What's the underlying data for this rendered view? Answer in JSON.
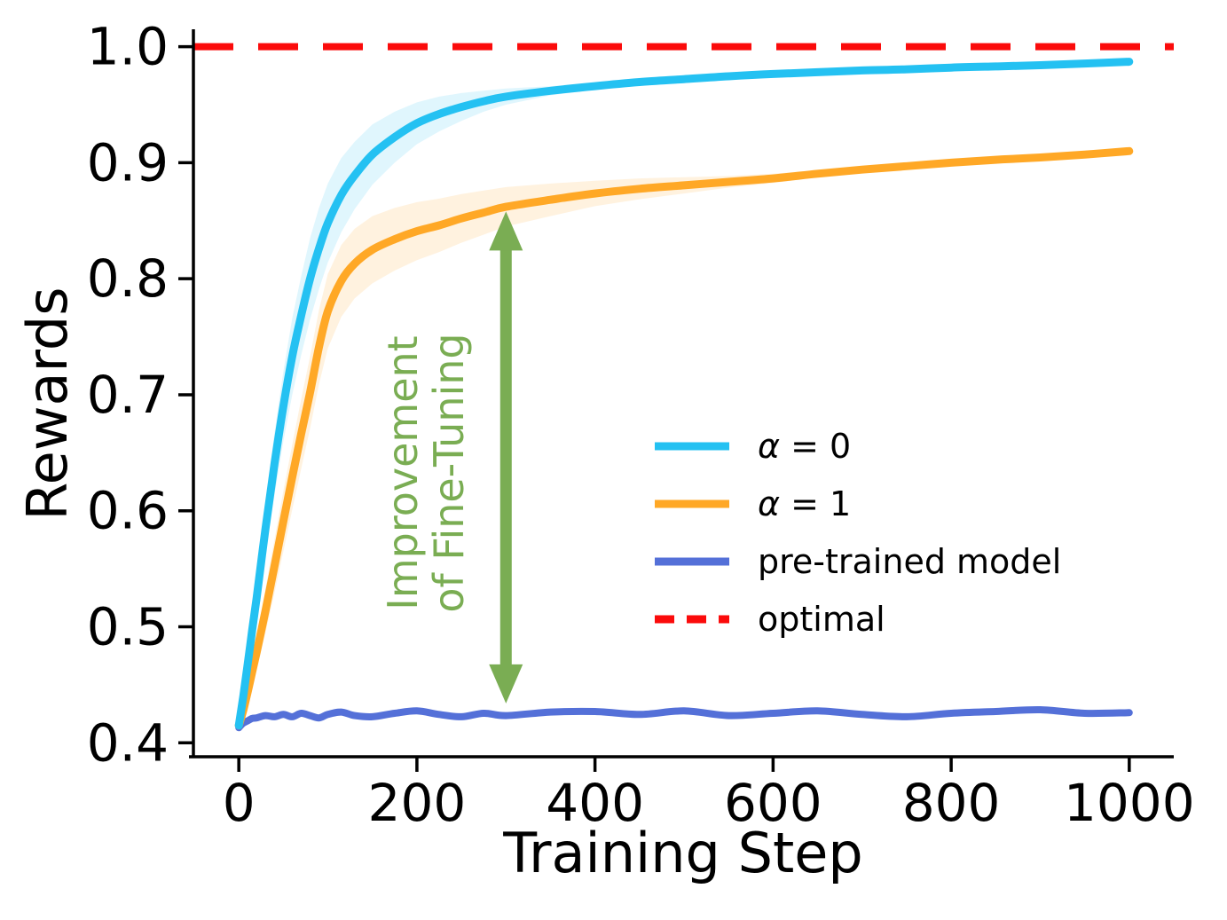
{
  "figure": {
    "background": "#ffffff",
    "xlabel": "Training Step",
    "ylabel": "Rewards",
    "axis_color": "#000000",
    "annotation": {
      "line1": "Improvement",
      "line2": "of Fine-Tuning",
      "color": "#7aad53",
      "arrow": {
        "x": 300,
        "y_from": 0.434,
        "y_to": 0.858
      }
    }
  },
  "chart_data": {
    "type": "line",
    "title": "",
    "xlabel": "Training Step",
    "ylabel": "Rewards",
    "xlim": [
      -51,
      1050
    ],
    "ylim": [
      0.388,
      1.015
    ],
    "xticks": [
      0,
      200,
      400,
      600,
      800,
      1000
    ],
    "yticks": [
      0.4,
      0.5,
      0.6,
      0.7,
      0.8,
      0.9,
      1.0
    ],
    "grid": false,
    "legend": {
      "position": "center right",
      "frame": false
    },
    "x": [
      0,
      5,
      10,
      15,
      20,
      30,
      40,
      50,
      60,
      70,
      80,
      90,
      100,
      115,
      130,
      150,
      175,
      200,
      225,
      250,
      275,
      300,
      350,
      400,
      450,
      500,
      550,
      600,
      650,
      700,
      750,
      800,
      850,
      900,
      950,
      1000
    ],
    "series": [
      {
        "name": "α = 0",
        "color": "#24c1f2",
        "band_color": "rgba(36,193,242,0.14)",
        "line_width": 9,
        "style": "solid",
        "values": [
          0.415,
          0.44,
          0.468,
          0.497,
          0.525,
          0.585,
          0.64,
          0.69,
          0.733,
          0.768,
          0.8,
          0.826,
          0.848,
          0.872,
          0.889,
          0.907,
          0.922,
          0.934,
          0.942,
          0.948,
          0.953,
          0.957,
          0.962,
          0.966,
          0.9695,
          0.972,
          0.9745,
          0.9765,
          0.978,
          0.9795,
          0.9805,
          0.982,
          0.983,
          0.984,
          0.9855,
          0.987
        ],
        "band_halfwidth": [
          0.003,
          0.006,
          0.009,
          0.013,
          0.016,
          0.022,
          0.027,
          0.03,
          0.033,
          0.034,
          0.035,
          0.035,
          0.034,
          0.032,
          0.029,
          0.026,
          0.022,
          0.018,
          0.015,
          0.012,
          0.009,
          0.007,
          0.004,
          0.003,
          0.002,
          0.002,
          0.0015,
          0.001,
          0.001,
          0.001,
          0.001,
          0.001,
          0.001,
          0.001,
          0.001,
          0.001
        ]
      },
      {
        "name": "α = 1",
        "color": "#ffa826",
        "band_color": "rgba(255,168,38,0.15)",
        "line_width": 9,
        "style": "solid",
        "values": [
          0.415,
          0.428,
          0.444,
          0.461,
          0.478,
          0.514,
          0.552,
          0.591,
          0.629,
          0.666,
          0.702,
          0.741,
          0.772,
          0.798,
          0.813,
          0.825,
          0.834,
          0.841,
          0.846,
          0.852,
          0.857,
          0.862,
          0.868,
          0.8735,
          0.8775,
          0.8805,
          0.8835,
          0.8865,
          0.8905,
          0.894,
          0.897,
          0.9,
          0.9025,
          0.9045,
          0.907,
          0.91
        ],
        "band_halfwidth": [
          0.003,
          0.005,
          0.008,
          0.011,
          0.014,
          0.019,
          0.023,
          0.026,
          0.028,
          0.03,
          0.031,
          0.032,
          0.032,
          0.031,
          0.03,
          0.029,
          0.027,
          0.025,
          0.023,
          0.021,
          0.019,
          0.017,
          0.014,
          0.011,
          0.009,
          0.007,
          0.005,
          0.004,
          0.003,
          0.0025,
          0.002,
          0.0015,
          0.001,
          0.001,
          0.001,
          0.001
        ]
      },
      {
        "name": "pre-trained model",
        "color": "#5470d8",
        "line_width": 8,
        "style": "solid",
        "values": [
          0.413,
          0.417,
          0.419,
          0.421,
          0.4215,
          0.4235,
          0.4225,
          0.4245,
          0.4225,
          0.4255,
          0.4235,
          0.4215,
          0.4245,
          0.4265,
          0.4235,
          0.4225,
          0.4255,
          0.4275,
          0.4245,
          0.4225,
          0.4255,
          0.4235,
          0.4265,
          0.427,
          0.4245,
          0.4275,
          0.4235,
          0.4255,
          0.4275,
          0.4245,
          0.4225,
          0.4255,
          0.427,
          0.4285,
          0.4255,
          0.426
        ]
      },
      {
        "name": "optimal",
        "color": "#fb0b0b",
        "line_width": 8,
        "style": "dashed",
        "constant": 1.0
      }
    ]
  }
}
